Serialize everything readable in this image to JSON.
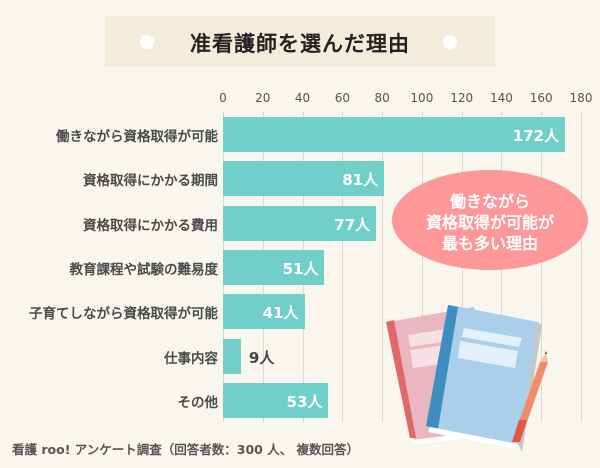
{
  "title": "准看護師を選んだ理由",
  "footer": "看護 roo! アンケート調査（回答者数：300 人、 複数回答）",
  "callout": {
    "lines": [
      "働きながら",
      "資格取得が可能が",
      "最も多い理由"
    ]
  },
  "colors": {
    "background": "#f9f6ee",
    "title_box": "#f2ecda",
    "bar": "#70cfc9",
    "callout": "#fe9797",
    "gridline": "#dcd8cf"
  },
  "axis": {
    "ticks": [
      "0",
      "20",
      "40",
      "60",
      "80",
      "100",
      "120",
      "140",
      "160",
      "180"
    ]
  },
  "bars": [
    {
      "label": "働きながら資格取得が可能",
      "value_label": "172人"
    },
    {
      "label": "資格取得にかかる期間",
      "value_label": "81人"
    },
    {
      "label": "資格取得にかかる費用",
      "value_label": "77人"
    },
    {
      "label": "教育課程や試験の難易度",
      "value_label": "51人"
    },
    {
      "label": "子育てしながら資格取得が可能",
      "value_label": "41人"
    },
    {
      "label": "仕事内容",
      "value_label": "9人"
    },
    {
      "label": "その他",
      "value_label": "53人"
    }
  ],
  "chart_data": {
    "type": "bar",
    "orientation": "horizontal",
    "title": "准看護師を選んだ理由",
    "categories": [
      "働きながら資格取得が可能",
      "資格取得にかかる期間",
      "資格取得にかかる費用",
      "教育課程や試験の難易度",
      "子育てしながら資格取得が可能",
      "仕事内容",
      "その他"
    ],
    "values": [
      172,
      81,
      77,
      51,
      41,
      9,
      53
    ],
    "unit": "人",
    "xlabel": "",
    "ylabel": "",
    "xlim": [
      0,
      180
    ],
    "xticks": [
      0,
      20,
      40,
      60,
      80,
      100,
      120,
      140,
      160,
      180
    ],
    "grid": true,
    "legend": null,
    "annotation": "働きながら資格取得が可能が最も多い理由",
    "source": "看護 roo! アンケート調査（回答者数：300 人、 複数回答）"
  }
}
